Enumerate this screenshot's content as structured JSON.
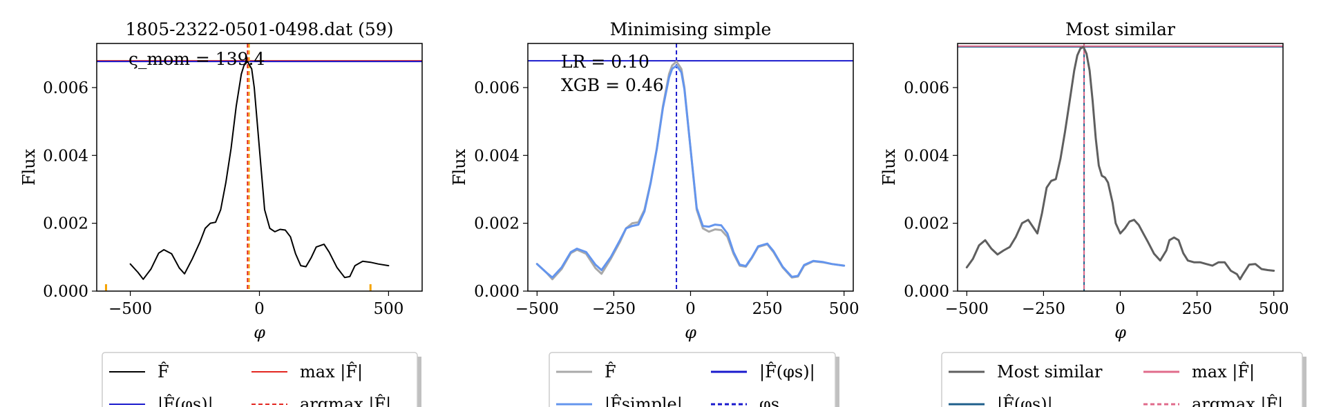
{
  "chart_data": [
    {
      "type": "line",
      "title": "1805-2322-0501-0498.dat (59)",
      "xlabel": "φ",
      "ylabel": "Flux",
      "xlim": [
        -630,
        630
      ],
      "ylim": [
        0,
        0.0073
      ],
      "xticks": [
        -500,
        0,
        500
      ],
      "xtick_labels": [
        "−500",
        "0",
        "500"
      ],
      "yticks": [
        0,
        0.002,
        0.004,
        0.006
      ],
      "ytick_labels": [
        "0.000",
        "0.002",
        "0.004",
        "0.006"
      ],
      "grid": false,
      "annotation": "ς_mom = 139.4",
      "hlines": [
        {
          "y": 0.00679,
          "color": "#e3261f"
        },
        {
          "y": 0.00677,
          "color": "#1a1acd"
        }
      ],
      "vlines": [
        {
          "x": -46,
          "color": "#e3261f",
          "dash": true
        },
        {
          "x": -40,
          "color": "#f5a300",
          "dash": true
        }
      ],
      "bottom_ticks": {
        "x": [
          -594,
          430
        ],
        "color": "#f5a300"
      },
      "series": [
        {
          "color": "#000000",
          "x": [
            -500,
            -470,
            -450,
            -420,
            -390,
            -370,
            -340,
            -310,
            -290,
            -260,
            -230,
            -210,
            -190,
            -170,
            -150,
            -130,
            -110,
            -90,
            -70,
            -60,
            -46,
            -30,
            -20,
            0,
            20,
            40,
            60,
            80,
            100,
            120,
            140,
            160,
            180,
            200,
            220,
            250,
            270,
            300,
            330,
            350,
            370,
            400,
            430,
            460,
            500
          ],
          "y": [
            0.0008,
            0.00055,
            0.00035,
            0.00065,
            0.00112,
            0.00122,
            0.0011,
            0.00068,
            0.00051,
            0.00095,
            0.00145,
            0.00185,
            0.002,
            0.00203,
            0.0024,
            0.0032,
            0.0042,
            0.00545,
            0.0064,
            0.00665,
            0.00677,
            0.00655,
            0.006,
            0.0042,
            0.0024,
            0.00185,
            0.00175,
            0.00182,
            0.0018,
            0.0016,
            0.0011,
            0.00075,
            0.00072,
            0.00098,
            0.0013,
            0.00138,
            0.00115,
            0.0007,
            0.0004,
            0.00043,
            0.00075,
            0.00088,
            0.00085,
            0.0008,
            0.00075
          ]
        }
      ],
      "legend": {
        "placement": "below",
        "columns": 2,
        "entries": [
          {
            "label": "F̂",
            "color": "#000000",
            "dash": false
          },
          {
            "label": "max |F̂|",
            "color": "#e3261f",
            "dash": false
          },
          {
            "label": "|F̂(φs)|",
            "color": "#1a1acd",
            "dash": false
          },
          {
            "label": "argmax |F̂|",
            "color": "#e3261f",
            "dash": true
          }
        ]
      }
    },
    {
      "type": "line",
      "title": "Minimising simple",
      "xlabel": "φ",
      "ylabel": "Flux",
      "xlim": [
        -530,
        530
      ],
      "ylim": [
        0,
        0.0073
      ],
      "xticks": [
        -500,
        -250,
        0,
        250,
        500
      ],
      "xtick_labels": [
        "−500",
        "−250",
        "0",
        "250",
        "500"
      ],
      "yticks": [
        0,
        0.002,
        0.004,
        0.006
      ],
      "ytick_labels": [
        "0.000",
        "0.002",
        "0.004",
        "0.006"
      ],
      "grid": false,
      "annotation_lines": [
        "LR = 0.10",
        "XGB = 0.46"
      ],
      "hlines": [
        {
          "y": 0.00679,
          "color": "#1a1acd"
        }
      ],
      "vlines": [
        {
          "x": -46,
          "color": "#1a1acd",
          "dash": true
        }
      ],
      "series": [
        {
          "color": "#a9a9a9",
          "x": [
            -500,
            -470,
            -450,
            -420,
            -390,
            -370,
            -340,
            -310,
            -290,
            -260,
            -230,
            -210,
            -190,
            -170,
            -150,
            -130,
            -110,
            -90,
            -70,
            -60,
            -46,
            -30,
            -20,
            0,
            20,
            40,
            60,
            80,
            100,
            120,
            140,
            160,
            180,
            200,
            220,
            250,
            270,
            300,
            330,
            350,
            370,
            400,
            430,
            460,
            500
          ],
          "y": [
            0.0008,
            0.00055,
            0.00035,
            0.00065,
            0.00112,
            0.00122,
            0.0011,
            0.00068,
            0.00051,
            0.00095,
            0.00145,
            0.00185,
            0.002,
            0.00203,
            0.0024,
            0.0032,
            0.0042,
            0.00545,
            0.0064,
            0.00665,
            0.00677,
            0.00655,
            0.006,
            0.0042,
            0.0024,
            0.00185,
            0.00175,
            0.00182,
            0.0018,
            0.0016,
            0.0011,
            0.00075,
            0.00072,
            0.00098,
            0.0013,
            0.00138,
            0.00115,
            0.0007,
            0.0004,
            0.00043,
            0.00075,
            0.00088,
            0.00085,
            0.0008,
            0.00075
          ]
        },
        {
          "color": "#6495ed",
          "x": [
            -500,
            -470,
            -450,
            -420,
            -390,
            -370,
            -340,
            -310,
            -290,
            -260,
            -230,
            -210,
            -190,
            -170,
            -150,
            -130,
            -110,
            -90,
            -70,
            -60,
            -46,
            -30,
            -20,
            0,
            20,
            40,
            60,
            80,
            100,
            120,
            140,
            160,
            180,
            200,
            220,
            250,
            270,
            300,
            330,
            350,
            370,
            400,
            430,
            460,
            500
          ],
          "y": [
            0.0008,
            0.00055,
            0.0004,
            0.0007,
            0.00115,
            0.00125,
            0.00115,
            0.00078,
            0.00062,
            0.001,
            0.0015,
            0.00185,
            0.00192,
            0.00196,
            0.00235,
            0.00318,
            0.00418,
            0.0054,
            0.0063,
            0.00655,
            0.00665,
            0.00645,
            0.00595,
            0.0042,
            0.00245,
            0.00192,
            0.0019,
            0.00196,
            0.00194,
            0.0017,
            0.00115,
            0.00078,
            0.00074,
            0.001,
            0.00132,
            0.0014,
            0.00118,
            0.00072,
            0.00042,
            0.00045,
            0.00077,
            0.00089,
            0.00086,
            0.0008,
            0.00075
          ]
        }
      ],
      "legend": {
        "placement": "below",
        "columns": 2,
        "entries": [
          {
            "label": "F̂",
            "color": "#a9a9a9",
            "dash": false
          },
          {
            "label": "|F̂(φs)|",
            "color": "#1a1acd",
            "dash": false
          },
          {
            "label": "|F̂simple|",
            "color": "#6495ed",
            "dash": false
          },
          {
            "label": "φs",
            "color": "#1a1acd",
            "dash": true
          }
        ]
      }
    },
    {
      "type": "line",
      "title": "Most similar",
      "xlabel": "φ",
      "ylabel": "Flux",
      "xlim": [
        -530,
        530
      ],
      "ylim": [
        0,
        0.0073
      ],
      "xticks": [
        -500,
        -250,
        0,
        250,
        500
      ],
      "xtick_labels": [
        "−500",
        "−250",
        "0",
        "250",
        "500"
      ],
      "yticks": [
        0,
        0.002,
        0.004,
        0.006
      ],
      "ytick_labels": [
        "0.000",
        "0.002",
        "0.004",
        "0.006"
      ],
      "grid": false,
      "hlines": [
        {
          "y": 0.0072,
          "color": "#1f5f8b"
        },
        {
          "y": 0.00722,
          "color": "#e06b8b"
        }
      ],
      "vlines": [
        {
          "x": -118,
          "color": "#1f5f8b",
          "dash": false
        },
        {
          "x": -118,
          "color": "#e06b8b",
          "dash": true
        }
      ],
      "series": [
        {
          "color": "#5f5f5f",
          "x": [
            -500,
            -480,
            -460,
            -440,
            -420,
            -400,
            -380,
            -360,
            -340,
            -320,
            -300,
            -285,
            -270,
            -255,
            -240,
            -225,
            -210,
            -195,
            -180,
            -165,
            -150,
            -140,
            -130,
            -120,
            -110,
            -100,
            -90,
            -80,
            -70,
            -60,
            -50,
            -40,
            -25,
            -15,
            0,
            15,
            30,
            45,
            60,
            75,
            90,
            110,
            130,
            150,
            160,
            175,
            190,
            205,
            220,
            240,
            260,
            280,
            300,
            320,
            340,
            360,
            380,
            390,
            400,
            420,
            440,
            460,
            480,
            500
          ],
          "y": [
            0.0007,
            0.00095,
            0.00135,
            0.0015,
            0.00125,
            0.00108,
            0.0012,
            0.0013,
            0.0016,
            0.002,
            0.0021,
            0.0019,
            0.0017,
            0.0023,
            0.00305,
            0.00325,
            0.0033,
            0.0039,
            0.0047,
            0.0056,
            0.0065,
            0.00695,
            0.00715,
            0.0072,
            0.007,
            0.0065,
            0.0056,
            0.0045,
            0.0037,
            0.0034,
            0.00335,
            0.0032,
            0.0026,
            0.002,
            0.0017,
            0.00185,
            0.00205,
            0.0021,
            0.00195,
            0.0017,
            0.00145,
            0.0011,
            0.0009,
            0.0012,
            0.0015,
            0.00158,
            0.0015,
            0.00112,
            0.0009,
            0.00085,
            0.00085,
            0.0008,
            0.00075,
            0.00085,
            0.00085,
            0.0006,
            0.0005,
            0.00035,
            0.0005,
            0.00078,
            0.0008,
            0.00065,
            0.00062,
            0.0006
          ]
        }
      ],
      "legend": {
        "placement": "below",
        "columns": 2,
        "entries": [
          {
            "label": "Most similar",
            "color": "#5f5f5f",
            "dash": false
          },
          {
            "label": "max |F̂|",
            "color": "#e06b8b",
            "dash": false
          },
          {
            "label": "|F̂(φs)|",
            "color": "#1f5f8b",
            "dash": false
          },
          {
            "label": "argmax |F̂|",
            "color": "#e06b8b",
            "dash": true
          }
        ]
      }
    }
  ]
}
